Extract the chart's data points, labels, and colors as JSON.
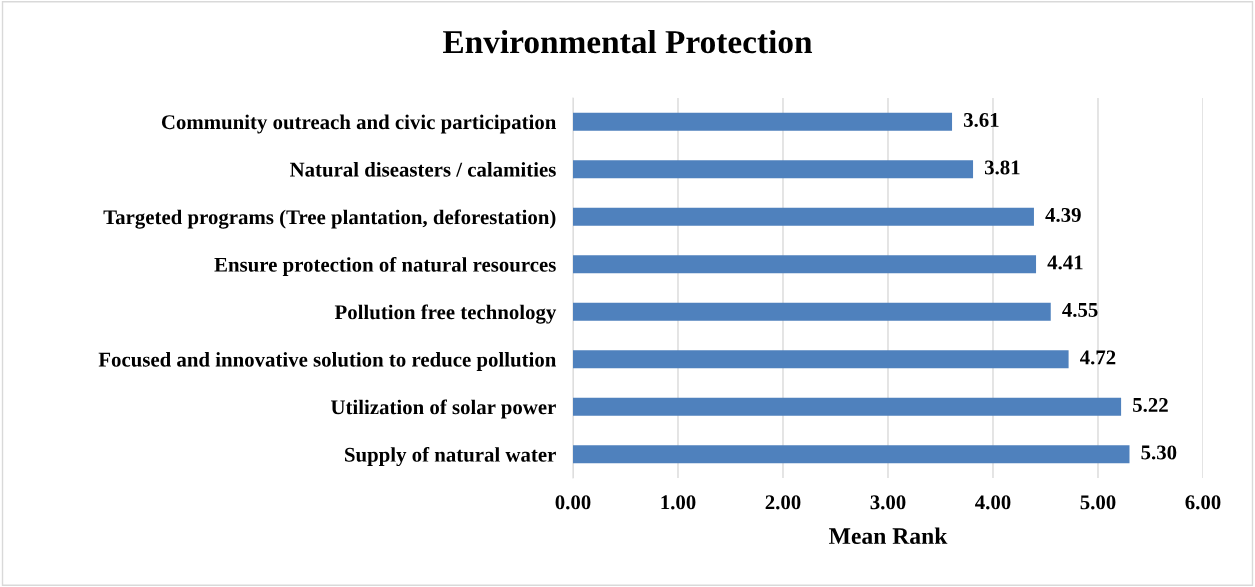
{
  "chart_data": {
    "type": "bar",
    "orientation": "horizontal",
    "title": "Environmental Protection",
    "xlabel": "Mean Rank",
    "categories": [
      "Community outreach and civic participation",
      "Natural diseasters / calamities",
      "Targeted programs (Tree plantation, deforestation)",
      "Ensure protection of natural resources",
      "Pollution free technology",
      "Focused and innovative solution to reduce pollution",
      "Utilization of solar power",
      "Supply of natural water"
    ],
    "values": [
      3.61,
      3.81,
      4.39,
      4.41,
      4.55,
      4.72,
      5.22,
      5.3
    ],
    "value_labels": [
      "3.61",
      "3.81",
      "4.39",
      "4.41",
      "4.55",
      "4.72",
      "5.22",
      "5.30"
    ],
    "color": "#4f81bd",
    "xlim": [
      0,
      6
    ],
    "xticks": [
      {
        "value": 0,
        "label": "0.00"
      },
      {
        "value": 1,
        "label": "1.00"
      },
      {
        "value": 2,
        "label": "2.00"
      },
      {
        "value": 3,
        "label": "3.00"
      },
      {
        "value": 4,
        "label": "4.00"
      },
      {
        "value": 5,
        "label": "5.00"
      },
      {
        "value": 6,
        "label": "6.00"
      }
    ],
    "grid": "x"
  }
}
